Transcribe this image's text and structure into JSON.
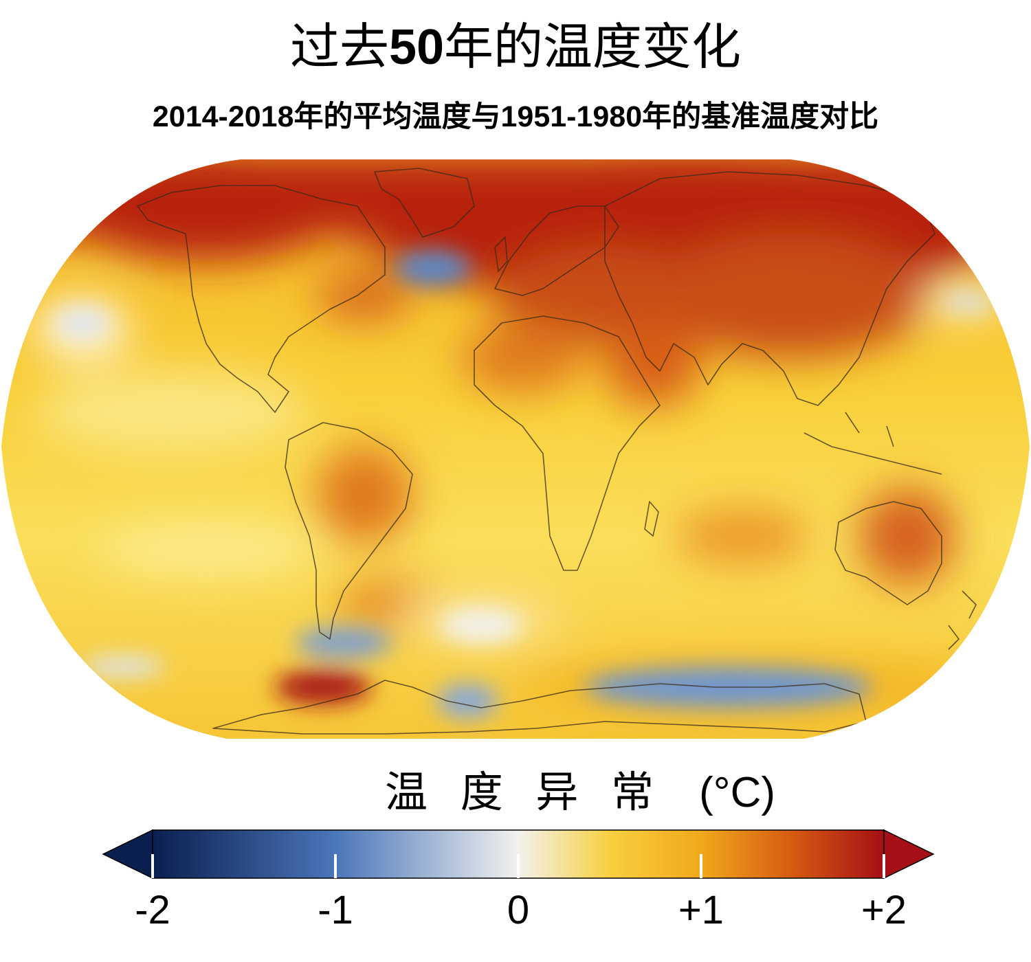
{
  "title": {
    "prefix": "过去",
    "number": "50",
    "suffix": "年的温度变化"
  },
  "subtitle": "2014-2018年的平均温度与1951-1980年的基准温度对比",
  "legend": {
    "title": "温 度 异 常",
    "unit": "(°C)",
    "ticks": [
      {
        "label": "-2",
        "value": -2
      },
      {
        "label": "-1",
        "value": -1
      },
      {
        "label": "0",
        "value": 0
      },
      {
        "label": "+1",
        "value": 1
      },
      {
        "label": "+2",
        "value": 2
      }
    ],
    "range": [
      -2,
      2
    ],
    "colors": {
      "minus2": "#0b1f4f",
      "minus1": "#4a76ba",
      "zero": "#f2f2ee",
      "plus05": "#f8d040",
      "plus1": "#f0a81c",
      "plus15": "#d65a12",
      "plus2": "#a50f15"
    }
  },
  "map": {
    "projection": "Robinson",
    "regions": [
      "Greenland",
      "North America",
      "South America",
      "Europe",
      "Africa",
      "Asia",
      "Australia",
      "Antarctica"
    ],
    "cool_anomalies": [
      "North Atlantic south of Greenland",
      "North Pacific near date line",
      "Southern Ocean off Cape Horn",
      "Antarctic coast"
    ]
  }
}
